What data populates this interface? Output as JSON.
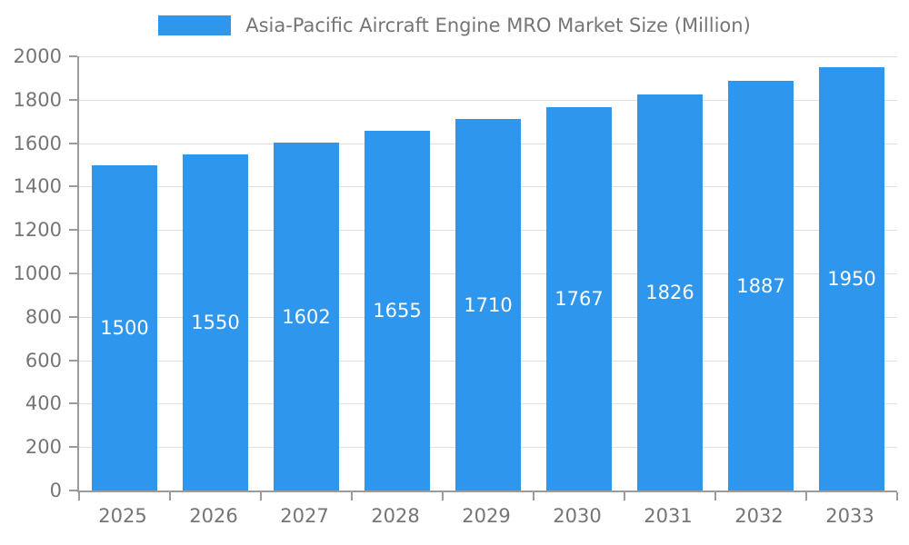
{
  "chart_data": {
    "type": "bar",
    "title": "Asia-Pacific Aircraft Engine MRO Market Size (Million)",
    "categories": [
      "2025",
      "2026",
      "2027",
      "2028",
      "2029",
      "2030",
      "2031",
      "2032",
      "2033"
    ],
    "values": [
      1500,
      1550,
      1602,
      1655,
      1710,
      1767,
      1826,
      1887,
      1950
    ],
    "xlabel": "",
    "ylabel": "",
    "ylim": [
      0,
      2000
    ],
    "ytick_step": 200,
    "grid": true,
    "legend_position": "top-center",
    "bar_color": "#2e96ec",
    "bar_label_color": "#ffffff",
    "axis_text_color": "#757575",
    "gridline_color": "#e0e0e0",
    "axis_line_color": "#9b9b9b"
  }
}
